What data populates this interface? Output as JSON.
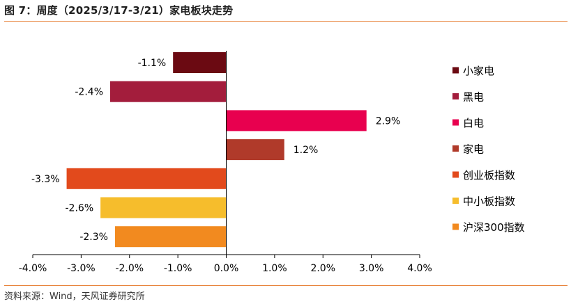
{
  "figure": {
    "title": "图 7：周度（2025/3/17-3/21）家电板块走势",
    "source": "资料来源：Wind，天风证券研究所"
  },
  "colors": {
    "accent_rule": "#e8823a",
    "axis": "#000000"
  },
  "chart_data": {
    "type": "bar",
    "orientation": "horizontal",
    "title": "",
    "xlabel": "",
    "ylabel": "",
    "xlim": [
      -4.0,
      4.0
    ],
    "x_ticks": [
      "-4.0%",
      "-3.0%",
      "-2.0%",
      "-1.0%",
      "0.0%",
      "1.0%",
      "2.0%",
      "3.0%",
      "4.0%"
    ],
    "x_tick_values": [
      -4,
      -3,
      -2,
      -1,
      0,
      1,
      2,
      3,
      4
    ],
    "grid": false,
    "legend_position": "right",
    "categories": [
      "小家电",
      "黑电",
      "白电",
      "家电",
      "创业板指数",
      "中小板指数",
      "沪深300指数"
    ],
    "values": [
      -1.1,
      -2.4,
      2.9,
      1.2,
      -3.3,
      -2.6,
      -2.3
    ],
    "value_labels": [
      "-1.1%",
      "-2.4%",
      "2.9%",
      "1.2%",
      "-3.3%",
      "-2.6%",
      "-2.3%"
    ],
    "bar_colors": [
      "#6b0a12",
      "#a31d3c",
      "#e8004f",
      "#b03a2a",
      "#e24a1c",
      "#f6bd2c",
      "#f28a1f"
    ]
  }
}
